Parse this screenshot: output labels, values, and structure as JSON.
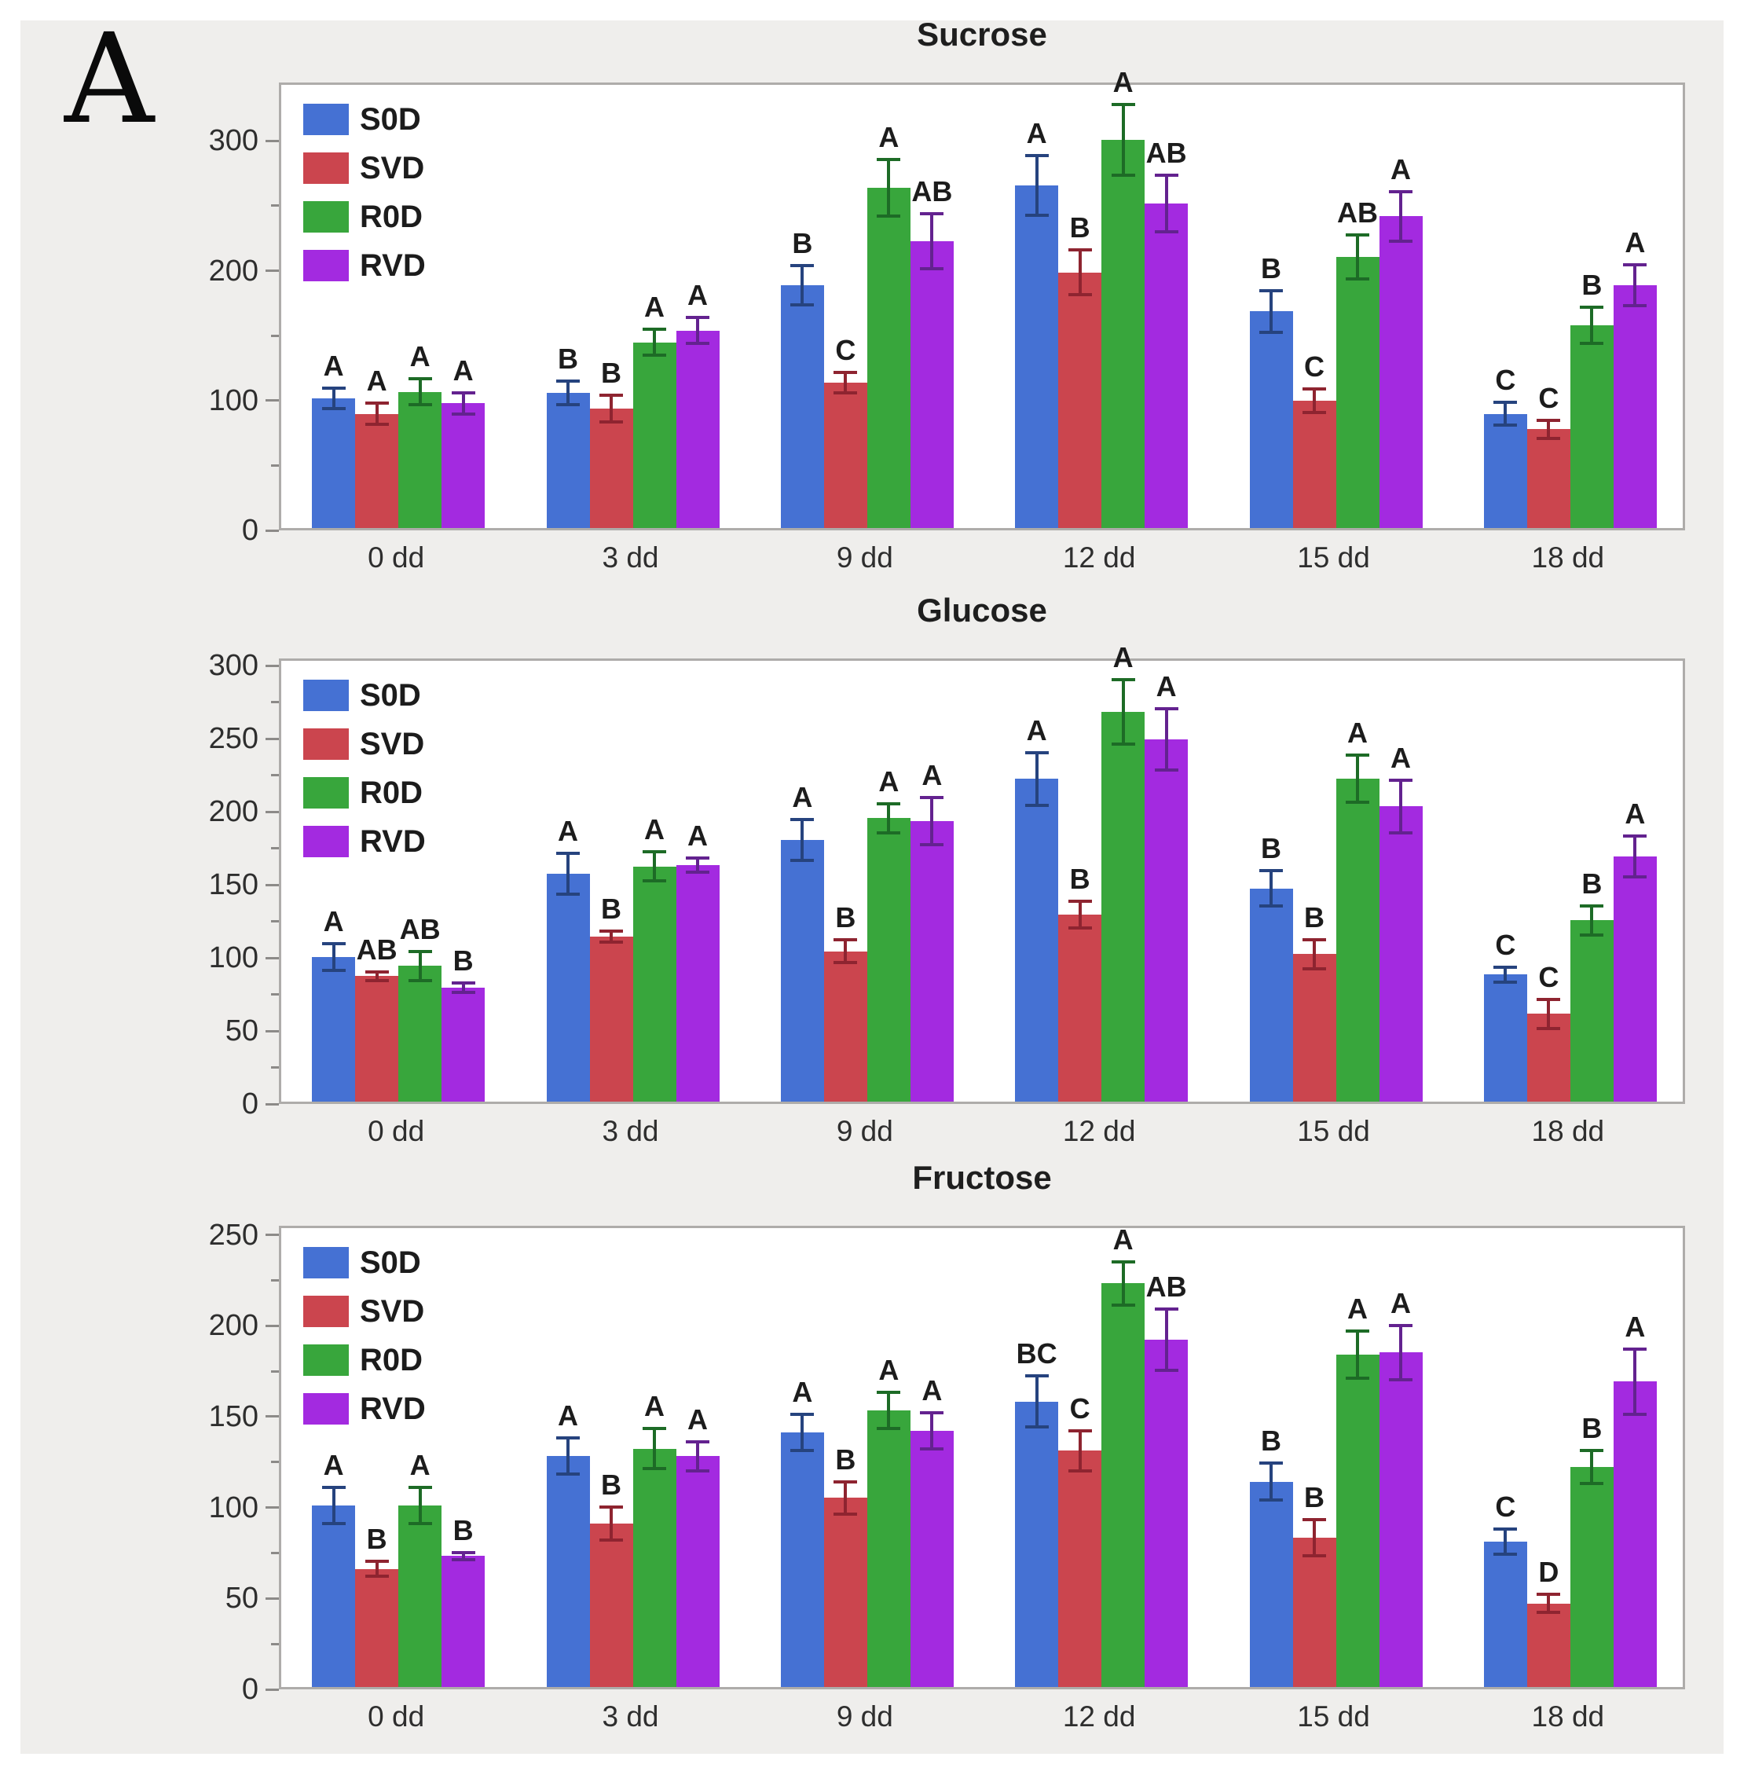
{
  "panel_label": "A",
  "figure": {
    "background_color": "#efeeec",
    "plot_border_color": "#aeacaa",
    "series_colors": {
      "S0D": "#4571d3",
      "SVD": "#cb454e",
      "R0D": "#38a63c",
      "RVD": "#a32ae0"
    },
    "error_bar_colors": {
      "S0D": "#26437e",
      "SVD": "#8e2430",
      "R0D": "#1d6b26",
      "RVD": "#63228f"
    }
  },
  "chart_data": [
    {
      "type": "bar",
      "title": "Sucrose",
      "categories": [
        "0 dd",
        "3 dd",
        "9 dd",
        "12 dd",
        "15 dd",
        "18 dd"
      ],
      "legend": [
        "S0D",
        "SVD",
        "R0D",
        "RVD"
      ],
      "legend_position": "top-left",
      "grid": false,
      "ylim": [
        0,
        345
      ],
      "yticks": [
        0,
        100,
        200,
        300
      ],
      "minor_tick_step": 50,
      "series": [
        {
          "name": "S0D",
          "values": [
            100,
            104,
            187,
            264,
            167,
            88
          ],
          "errors": [
            8,
            9,
            15,
            23,
            16,
            9
          ],
          "letters": [
            "A",
            "B",
            "B",
            "A",
            "B",
            "C"
          ]
        },
        {
          "name": "SVD",
          "values": [
            88,
            92,
            112,
            197,
            98,
            76
          ],
          "errors": [
            8,
            10,
            8,
            17,
            9,
            7
          ],
          "letters": [
            "A",
            "B",
            "C",
            "B",
            "C",
            "C"
          ]
        },
        {
          "name": "R0D",
          "values": [
            105,
            143,
            262,
            299,
            209,
            156
          ],
          "errors": [
            10,
            10,
            22,
            27,
            17,
            14
          ],
          "letters": [
            "A",
            "A",
            "A",
            "A",
            "AB",
            "B"
          ]
        },
        {
          "name": "RVD",
          "values": [
            96,
            152,
            221,
            250,
            240,
            187
          ],
          "errors": [
            8,
            10,
            21,
            22,
            19,
            16
          ],
          "letters": [
            "A",
            "A",
            "AB",
            "AB",
            "A",
            "A"
          ]
        }
      ]
    },
    {
      "type": "bar",
      "title": "Glucose",
      "categories": [
        "0 dd",
        "3 dd",
        "9 dd",
        "12 dd",
        "15 dd",
        "18 dd"
      ],
      "legend": [
        "S0D",
        "SVD",
        "R0D",
        "RVD"
      ],
      "legend_position": "top-left",
      "grid": false,
      "ylim": [
        0,
        305
      ],
      "yticks": [
        0,
        50,
        100,
        150,
        200,
        250,
        300
      ],
      "minor_tick_step": 25,
      "series": [
        {
          "name": "S0D",
          "values": [
            99,
            156,
            179,
            221,
            146,
            87
          ],
          "errors": [
            9,
            14,
            14,
            18,
            12,
            5
          ],
          "letters": [
            "A",
            "A",
            "A",
            "A",
            "B",
            "C"
          ]
        },
        {
          "name": "SVD",
          "values": [
            86,
            113,
            103,
            128,
            101,
            60
          ],
          "errors": [
            3,
            4,
            8,
            9,
            10,
            10
          ],
          "letters": [
            "AB",
            "B",
            "B",
            "B",
            "B",
            "C"
          ]
        },
        {
          "name": "R0D",
          "values": [
            93,
            161,
            194,
            267,
            221,
            124
          ],
          "errors": [
            10,
            10,
            10,
            22,
            16,
            10
          ],
          "letters": [
            "AB",
            "A",
            "A",
            "A",
            "A",
            "B"
          ]
        },
        {
          "name": "RVD",
          "values": [
            78,
            162,
            192,
            248,
            202,
            168
          ],
          "errors": [
            3,
            5,
            16,
            21,
            18,
            14
          ],
          "letters": [
            "B",
            "A",
            "A",
            "A",
            "A",
            "A"
          ]
        }
      ]
    },
    {
      "type": "bar",
      "title": "Fructose",
      "categories": [
        "0 dd",
        "3 dd",
        "9 dd",
        "12 dd",
        "15 dd",
        "18 dd"
      ],
      "legend": [
        "S0D",
        "SVD",
        "R0D",
        "RVD"
      ],
      "legend_position": "top-left",
      "grid": false,
      "ylim": [
        0,
        255
      ],
      "yticks": [
        0,
        50,
        100,
        150,
        200,
        250
      ],
      "minor_tick_step": 25,
      "series": [
        {
          "name": "S0D",
          "values": [
            100,
            127,
            140,
            157,
            113,
            80
          ],
          "errors": [
            10,
            10,
            10,
            14,
            10,
            7
          ],
          "letters": [
            "A",
            "A",
            "A",
            "BC",
            "B",
            "C"
          ]
        },
        {
          "name": "SVD",
          "values": [
            65,
            90,
            104,
            130,
            82,
            46
          ],
          "errors": [
            4,
            9,
            9,
            11,
            10,
            5
          ],
          "letters": [
            "B",
            "B",
            "B",
            "C",
            "B",
            "D"
          ]
        },
        {
          "name": "R0D",
          "values": [
            100,
            131,
            152,
            222,
            183,
            121
          ],
          "errors": [
            10,
            11,
            10,
            12,
            13,
            9
          ],
          "letters": [
            "A",
            "A",
            "A",
            "A",
            "A",
            "B"
          ]
        },
        {
          "name": "RVD",
          "values": [
            72,
            127,
            141,
            191,
            184,
            168
          ],
          "errors": [
            2,
            8,
            10,
            17,
            15,
            18
          ],
          "letters": [
            "B",
            "A",
            "A",
            "AB",
            "A",
            "A"
          ]
        }
      ]
    }
  ]
}
